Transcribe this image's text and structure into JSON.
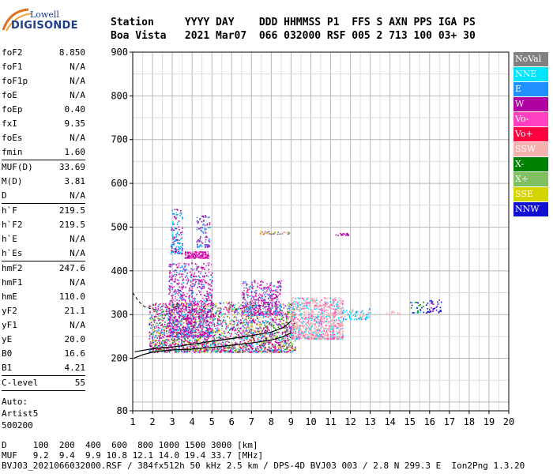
{
  "logo": {
    "top": "Lowell",
    "bottom": "DIGISONDE"
  },
  "header": {
    "line1": "Station     YYYY DAY    DDD HHMMSS P1  FFS S AXN PPS IGA PS",
    "line2": "Boa Vista   2021 Mar07  066 032000 RSF 005 2 713 100 03+ 30"
  },
  "params": [
    {
      "name": "foF2",
      "value": "8.850"
    },
    {
      "name": "foF1",
      "value": "N/A"
    },
    {
      "name": "foF1p",
      "value": "N/A"
    },
    {
      "name": "foE",
      "value": "N/A"
    },
    {
      "name": "foEp",
      "value": "0.40"
    },
    {
      "name": "fxI",
      "value": "9.35"
    },
    {
      "name": "foEs",
      "value": "N/A"
    },
    {
      "name": "fmin",
      "value": "1.60",
      "sep": true
    },
    {
      "name": "MUF(D)",
      "value": "33.69"
    },
    {
      "name": "M(D)",
      "value": "3.81"
    },
    {
      "name": "D",
      "value": "N/A",
      "sep": true
    },
    {
      "name": "h`F",
      "value": "219.5"
    },
    {
      "name": "h`F2",
      "value": "219.5"
    },
    {
      "name": "h`E",
      "value": "N/A"
    },
    {
      "name": "h`Es",
      "value": "N/A",
      "sep": true
    },
    {
      "name": "hmF2",
      "value": "247.6"
    },
    {
      "name": "hmF1",
      "value": "N/A"
    },
    {
      "name": "hmE",
      "value": "110.0"
    },
    {
      "name": "yF2",
      "value": "21.1"
    },
    {
      "name": "yF1",
      "value": "N/A"
    },
    {
      "name": "yE",
      "value": "20.0"
    },
    {
      "name": "B0",
      "value": "16.6"
    },
    {
      "name": "B1",
      "value": "4.21",
      "sep": true
    },
    {
      "name": "C-level",
      "value": "55",
      "sep": true
    }
  ],
  "auto": [
    "Auto:",
    "Artist5",
    "500200"
  ],
  "legend": [
    {
      "label": "NoVal",
      "color": "#808080"
    },
    {
      "label": "NNE",
      "color": "#00e5ff"
    },
    {
      "label": "E",
      "color": "#1e90ff"
    },
    {
      "label": "W",
      "color": "#b000a0"
    },
    {
      "label": "Vo-",
      "color": "#ff40c0"
    },
    {
      "label": "Vo+",
      "color": "#ff0040"
    },
    {
      "label": "SSW",
      "color": "#f5b0b0"
    },
    {
      "label": "X-",
      "color": "#008000"
    },
    {
      "label": "X+",
      "color": "#80c060"
    },
    {
      "label": "SSE",
      "color": "#d4d400"
    },
    {
      "label": "NNW",
      "color": "#1010d0"
    }
  ],
  "footer": {
    "line1": "D     100  200  400  600  800 1000 1500 3000 [km]",
    "line2": "MUF   9.2  9.4  9.9 10.8 12.1 14.0 19.4 33.7 [MHz]",
    "line3": "BVJ03_2021066032000.RSF / 384fx512h 50 kHz 2.5 km / DPS-4D BVJ03 003 / 2.8 N 299.3 E  Ion2Png 1.3.20"
  },
  "chart_data": {
    "type": "scatter",
    "xlim": [
      1,
      20
    ],
    "ylim": [
      80,
      900
    ],
    "xticks": [
      1,
      2,
      3,
      4,
      5,
      6,
      7,
      8,
      9,
      10,
      11,
      12,
      13,
      14,
      15,
      16,
      17,
      18,
      19,
      20
    ],
    "yticks": [
      80,
      200,
      300,
      400,
      500,
      600,
      700,
      800,
      900
    ],
    "grid": true,
    "xlabel": "",
    "ylabel": "",
    "trace_lower": [
      [
        1.05,
        200
      ],
      [
        1.5,
        208
      ],
      [
        2,
        214
      ],
      [
        2.5,
        217
      ],
      [
        3,
        219
      ],
      [
        4,
        221
      ],
      [
        5,
        225
      ],
      [
        6,
        230
      ],
      [
        7,
        235
      ],
      [
        8,
        242
      ],
      [
        8.5,
        248
      ],
      [
        9,
        258
      ]
    ],
    "trace_upper": [
      [
        1.1,
        215
      ],
      [
        2,
        222
      ],
      [
        3,
        226
      ],
      [
        4,
        232
      ],
      [
        5,
        239
      ],
      [
        6,
        245
      ],
      [
        7,
        252
      ],
      [
        8,
        260
      ],
      [
        8.6,
        270
      ],
      [
        9.0,
        285
      ]
    ],
    "trace_dashed": [
      [
        1.0,
        350
      ],
      [
        1.3,
        330
      ],
      [
        1.6,
        318
      ],
      [
        2.0,
        312
      ],
      [
        2.3,
        310
      ]
    ],
    "clusters": [
      {
        "x": [
          1.8,
          9.2
        ],
        "y": [
          215,
          330
        ],
        "n": 2600,
        "colors": [
          "#b000a0",
          "#b000a0",
          "#b000a0",
          "#1e90ff",
          "#00e5ff",
          "#ff40c0",
          "#ff0040",
          "#008000",
          "#80c060",
          "#d4d400",
          "#808080"
        ]
      },
      {
        "x": [
          2.8,
          5.0
        ],
        "y": [
          250,
          420
        ],
        "n": 900,
        "colors": [
          "#b000a0",
          "#b000a0",
          "#ff40c0",
          "#1e90ff"
        ]
      },
      {
        "x": [
          6.5,
          8.5
        ],
        "y": [
          300,
          380
        ],
        "n": 400,
        "colors": [
          "#b000a0",
          "#1e90ff",
          "#ff40c0"
        ]
      },
      {
        "x": [
          9.0,
          11.6
        ],
        "y": [
          245,
          340
        ],
        "n": 1100,
        "colors": [
          "#f5b0b0",
          "#f5b0b0",
          "#f5b0b0",
          "#00e5ff",
          "#ff40c0"
        ]
      },
      {
        "x": [
          11.5,
          13.0
        ],
        "y": [
          290,
          315
        ],
        "n": 80,
        "colors": [
          "#00e5ff",
          "#f5b0b0",
          "#1e90ff"
        ]
      },
      {
        "x": [
          3.6,
          4.8
        ],
        "y": [
          430,
          445
        ],
        "n": 180,
        "colors": [
          "#b000a0",
          "#ff40c0"
        ]
      },
      {
        "x": [
          2.9,
          3.5
        ],
        "y": [
          440,
          545
        ],
        "n": 140,
        "colors": [
          "#1e90ff",
          "#00e5ff",
          "#b000a0"
        ]
      },
      {
        "x": [
          4.2,
          4.9
        ],
        "y": [
          455,
          530
        ],
        "n": 90,
        "colors": [
          "#1e90ff",
          "#b000a0"
        ]
      },
      {
        "x": [
          7.4,
          8.9
        ],
        "y": [
          485,
          492
        ],
        "n": 40,
        "colors": [
          "#d4d400",
          "#ff40c0",
          "#808080"
        ]
      },
      {
        "x": [
          11.2,
          11.9
        ],
        "y": [
          482,
          487
        ],
        "n": 15,
        "colors": [
          "#b000a0"
        ]
      },
      {
        "x": [
          15.0,
          15.7
        ],
        "y": [
          305,
          330
        ],
        "n": 30,
        "colors": [
          "#008000",
          "#00e5ff",
          "#1010d0"
        ]
      },
      {
        "x": [
          15.8,
          16.6
        ],
        "y": [
          305,
          335
        ],
        "n": 40,
        "colors": [
          "#1010d0",
          "#1010d0",
          "#b000a0"
        ]
      },
      {
        "x": [
          13.5,
          14.5
        ],
        "y": [
          300,
          310
        ],
        "n": 12,
        "colors": [
          "#f5b0b0"
        ]
      }
    ]
  }
}
